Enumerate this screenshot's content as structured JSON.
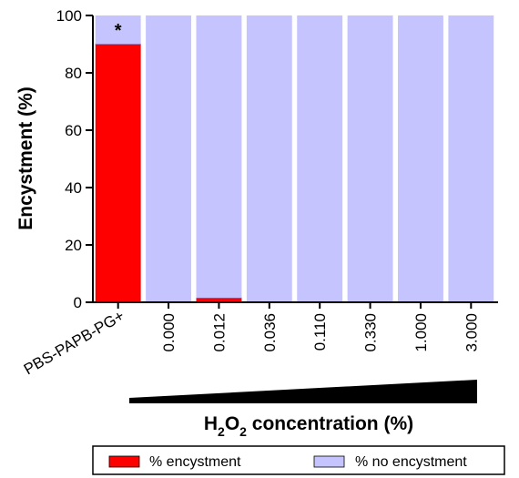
{
  "chart_data": {
    "type": "bar",
    "stacked": true,
    "categories": [
      "PBS-PAPB-PG+",
      "0.000",
      "0.012",
      "0.036",
      "0.110",
      "0.330",
      "1.000",
      "3.000"
    ],
    "series": [
      {
        "name": "% encystment",
        "color": "#ff0000",
        "values": [
          90,
          0,
          1.5,
          0,
          0,
          0,
          0,
          0
        ]
      },
      {
        "name": "% no encystment",
        "color": "#c5c4ff",
        "values": [
          10,
          100,
          98.5,
          100,
          100,
          100,
          100,
          100
        ]
      }
    ],
    "ylabel": "Encystment (%)",
    "xlabel": {
      "base": "H",
      "sub1": "2",
      "mid": "O",
      "sub2": "2",
      "rest": " concentration (%)"
    },
    "ylim": [
      0,
      100
    ],
    "yticks": [
      0,
      20,
      40,
      60,
      80,
      100
    ],
    "annotations": [
      {
        "category": "PBS-PAPB-PG+",
        "text": "*"
      }
    ],
    "legend_position": "bottom",
    "grid": false
  }
}
